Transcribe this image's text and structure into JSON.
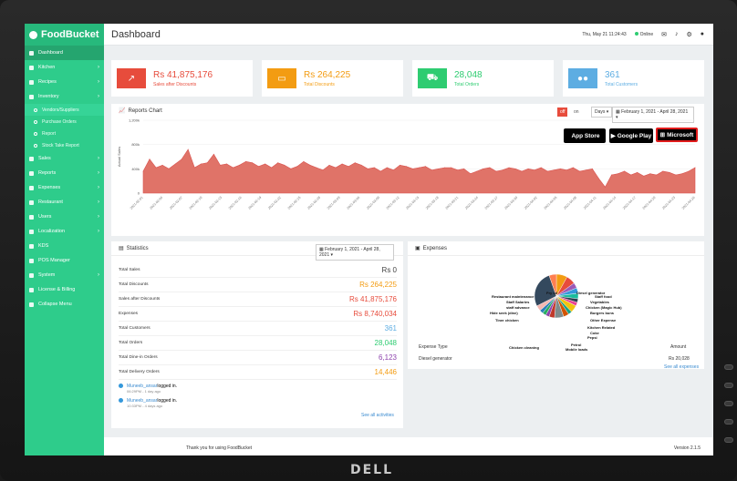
{
  "brand": "FoodBucket",
  "sidebar": {
    "items": [
      {
        "label": "Dashboard",
        "active": true
      },
      {
        "label": "Kitchen",
        "chev": "›"
      },
      {
        "label": "Recipes",
        "chev": "›"
      },
      {
        "label": "Inventory",
        "chev": "›"
      }
    ],
    "subitems": [
      "Vendors/Suppliers",
      "Purchase Orders",
      "Report",
      "Stock Take Report"
    ],
    "items2": [
      {
        "label": "Sales",
        "chev": "›"
      },
      {
        "label": "Reports",
        "chev": "›"
      },
      {
        "label": "Expenses",
        "chev": "›"
      },
      {
        "label": "Restaurant",
        "chev": "›"
      },
      {
        "label": "Users",
        "chev": "›"
      },
      {
        "label": "Localization",
        "chev": "›"
      },
      {
        "label": "KDS",
        "chev": ""
      },
      {
        "label": "POS Manager",
        "chev": ""
      },
      {
        "label": "System",
        "chev": "›"
      },
      {
        "label": "License & Billing",
        "chev": ""
      },
      {
        "label": "Collapse Menu",
        "chev": ""
      }
    ]
  },
  "topbar": {
    "title": "Dashboard",
    "datetime": "Thu, May 21 11:24:43",
    "status": "Online"
  },
  "stats": [
    {
      "value": "Rs 41,875,176",
      "label": "Sales after Discounts",
      "color": "#e74c3c",
      "icon": "chart-icon"
    },
    {
      "value": "Rs 264,225",
      "label": "Total Discounts",
      "color": "#f39c12",
      "icon": "money-icon"
    },
    {
      "value": "28,048",
      "label": "Total Orders",
      "color": "#2ecc71",
      "icon": "cart-icon"
    },
    {
      "value": "361",
      "label": "Total Customers",
      "color": "#5dade2",
      "icon": "users-icon"
    }
  ],
  "reports": {
    "title": "Reports Chart",
    "toggle_off": "off",
    "toggle_on": "on",
    "period": "Days",
    "date_range": "February 1, 2021 - April 28, 2021",
    "app_store": "App Store",
    "google_play": "Google Play",
    "microsoft": "Microsoft"
  },
  "chart_data": {
    "type": "area",
    "ylabel": "Actual Sales",
    "y_ticks": [
      "1,200k",
      "800k",
      "400k",
      "0"
    ],
    "ylim": [
      0,
      1200000
    ],
    "x_labels": [
      "2021-02-01",
      "2021-02-04",
      "2021-02-07",
      "2021-02-10",
      "2021-02-13",
      "2021-02-16",
      "2021-02-19",
      "2021-02-22",
      "2021-02-25",
      "2021-02-28",
      "2021-03-03",
      "2021-03-06",
      "2021-03-09",
      "2021-03-12",
      "2021-03-15",
      "2021-03-18",
      "2021-03-21",
      "2021-03-24",
      "2021-03-27",
      "2021-03-30",
      "2021-04-02",
      "2021-04-05",
      "2021-04-08",
      "2021-04-11",
      "2021-04-14",
      "2021-04-17",
      "2021-04-20",
      "2021-04-23",
      "2021-04-26"
    ],
    "values": [
      360000,
      560000,
      420000,
      460000,
      400000,
      480000,
      560000,
      720000,
      420000,
      480000,
      500000,
      640000,
      460000,
      480000,
      420000,
      460000,
      520000,
      500000,
      440000,
      480000,
      420000,
      500000,
      460000,
      400000,
      440000,
      520000,
      460000,
      420000,
      380000,
      460000,
      420000,
      480000,
      440000,
      500000,
      460000,
      400000,
      420000,
      360000,
      420000,
      380000,
      460000,
      440000,
      400000,
      420000,
      440000,
      380000,
      400000,
      420000,
      420000,
      380000,
      400000,
      320000,
      360000,
      400000,
      420000,
      360000,
      380000,
      420000,
      400000,
      360000,
      400000,
      380000,
      420000,
      360000,
      380000,
      400000,
      380000,
      420000,
      360000,
      380000,
      400000,
      240000,
      100000,
      300000,
      320000,
      360000,
      300000,
      340000,
      280000,
      320000,
      300000,
      360000,
      340000,
      300000,
      320000,
      360000,
      420000
    ]
  },
  "statistics": {
    "title": "Statistics",
    "date_range": "February 1, 2021 - April 28, 2021",
    "rows": [
      {
        "label": "Total Sales",
        "value": "Rs 0",
        "color": "#444444"
      },
      {
        "label": "Total Discounts",
        "value": "Rs 264,225",
        "color": "#f39c12"
      },
      {
        "label": "Sales after Discounts",
        "value": "Rs 41,875,176",
        "color": "#e74c3c"
      },
      {
        "label": "Expenses",
        "value": "Rs 8,740,034",
        "color": "#e74c3c"
      },
      {
        "label": "Total Customers",
        "value": "361",
        "color": "#5dade2"
      },
      {
        "label": "Total Orders",
        "value": "28,048",
        "color": "#2ecc71"
      },
      {
        "label": "Total Dine-in Orders",
        "value": "6,123",
        "color": "#8e44ad"
      },
      {
        "label": "Total Delivery Orders",
        "value": "14,446",
        "color": "#f39c12"
      }
    ],
    "activities": [
      {
        "name": "Muneeb_ansar",
        "action": "logged in.",
        "time": "06:29PM - 1 day ago"
      },
      {
        "name": "Muneeb_ansar",
        "action": "logged in.",
        "time": "10:33PM - 4 days ago"
      }
    ],
    "see_all": "See all activities"
  },
  "expenses": {
    "title": "Expenses",
    "labels": [
      "Fry oil",
      "Diesel generator",
      "Staff food",
      "Restaurant maintenance",
      "Staff Salaries",
      "Vegetables",
      "staff advance",
      "Chicken (Magic Hub)",
      "Hide seek (dine)",
      "Burgers buns",
      "Tiner chicken",
      "Other Expense",
      "Kitchen Related",
      "Coke",
      "Pepsi",
      "Petrol",
      "Chicken cleaning",
      "Mobile loads"
    ],
    "col_type": "Expense Type",
    "col_amount": "Amount",
    "row_type": "Diesel generator",
    "row_amount": "Rs 20,028",
    "see_all": "See all expenses"
  },
  "footer": {
    "left": "Thank you for using FoodBucket",
    "right": "Version 2.1.5"
  },
  "monitor_brand": "DELL"
}
